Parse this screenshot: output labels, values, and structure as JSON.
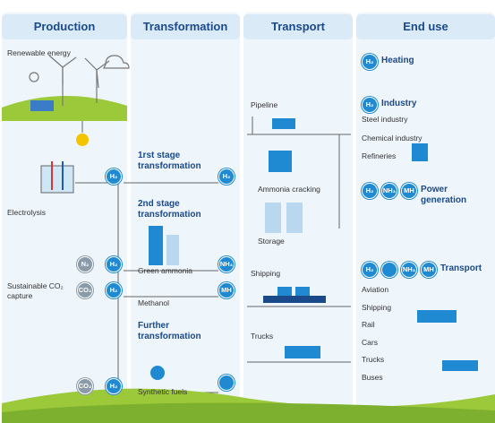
{
  "columns": [
    "Production",
    "Transformation",
    "Transport",
    "End use"
  ],
  "badges": {
    "h2": "H₂",
    "nh3": "NH₃",
    "mh": "MH",
    "n2": "N₂",
    "co2": "CO₂"
  },
  "production": {
    "renewable": "Renewable energy",
    "electrolysis": "Electrolysis",
    "capture": "Sustainable CO₂ capture"
  },
  "transformation": {
    "stage1": "1rst stage transformation",
    "stage2": "2nd stage transformation",
    "ammonia": "Green ammonia",
    "methanol": "Methanol",
    "further": "Further transformation",
    "synthetic": "Synthetic fuels"
  },
  "transport": {
    "pipeline": "Pipeline",
    "cracking": "Ammonia cracking",
    "storage": "Storage",
    "shipping": "Shipping",
    "trucks": "Trucks"
  },
  "end_use": {
    "heating": "Heating",
    "industry": "Industry",
    "industry_items": [
      "Steel industry",
      "Chemical industry",
      "Refineries"
    ],
    "power": "Power generation",
    "transport": "Transport",
    "transport_items": [
      "Aviation",
      "Shipping",
      "Rail",
      "Cars",
      "Trucks",
      "Buses"
    ]
  }
}
